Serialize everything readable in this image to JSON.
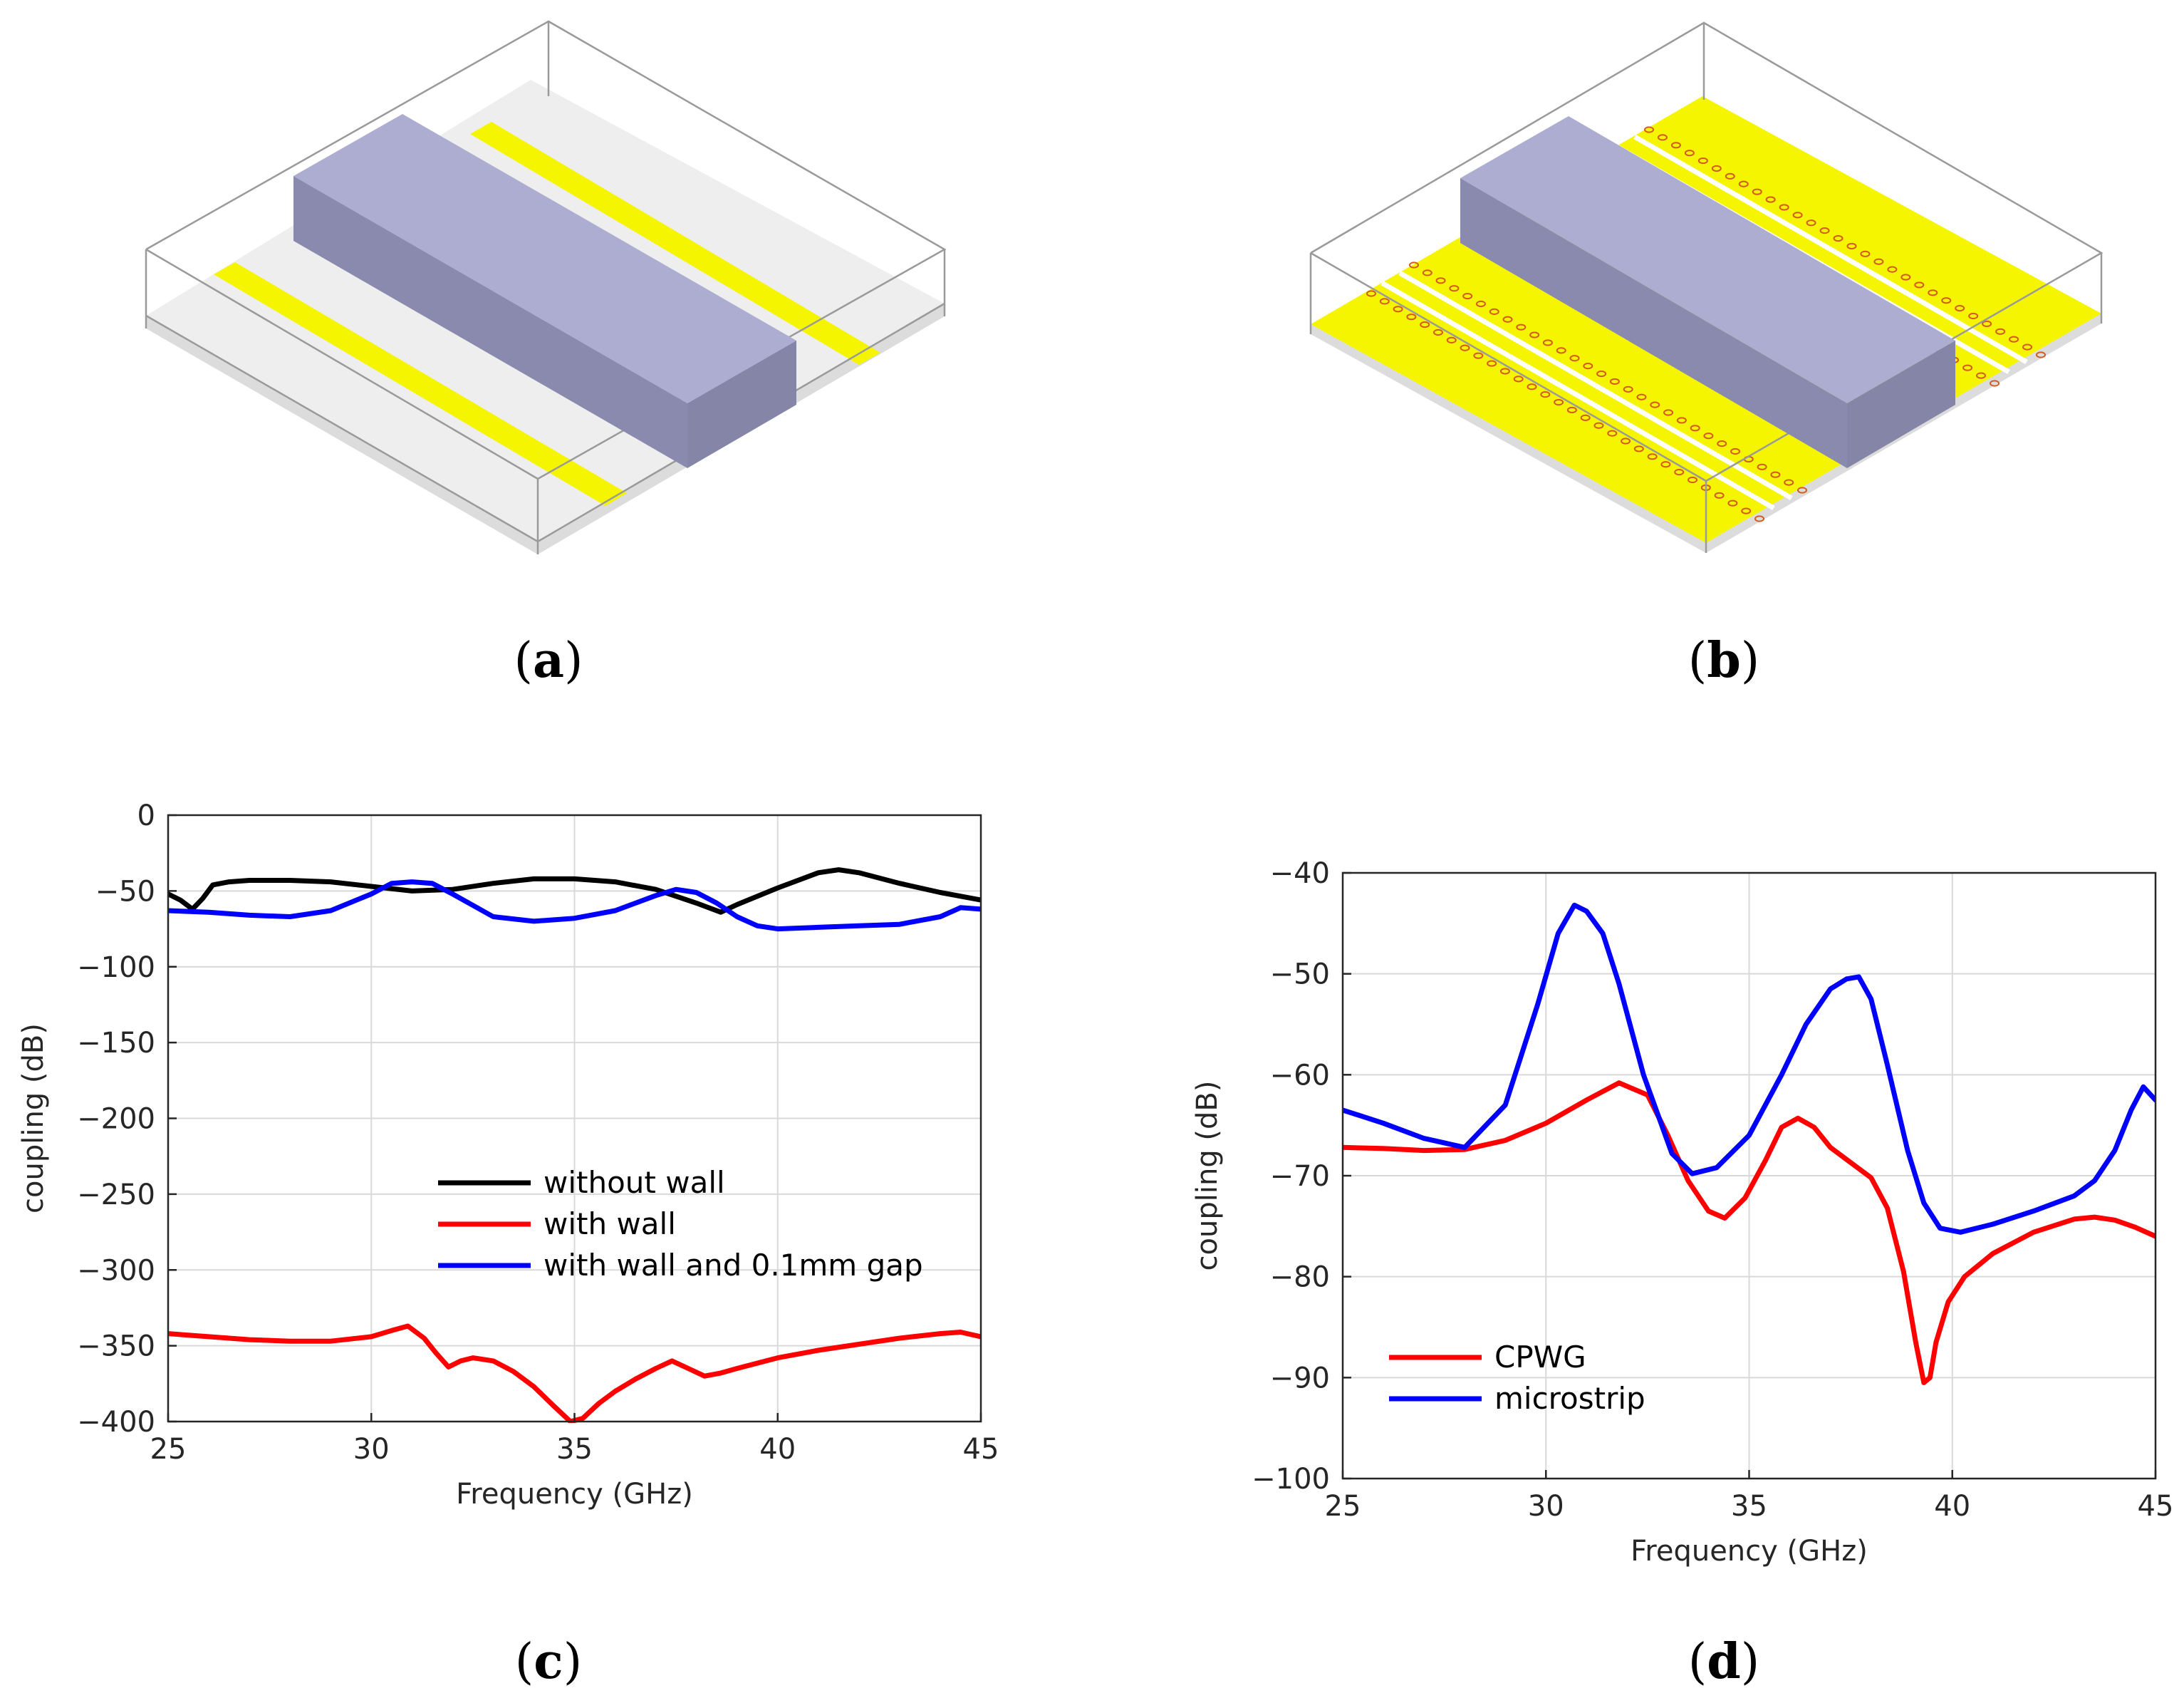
{
  "panels": {
    "a": {
      "caption": "a"
    },
    "b": {
      "caption": "b"
    },
    "c": {
      "caption": "c"
    },
    "d": {
      "caption": "d"
    }
  },
  "colors": {
    "box_face_top": "#adadd2",
    "box_face_front": "#8a8aae",
    "box_face_side": "#8585a8",
    "strip": "#f5f500",
    "ground": "#f5f500",
    "substrate": "#eeeeee",
    "via": "#d45a1e"
  },
  "chart_data": [
    {
      "id": "c",
      "type": "line",
      "title": "",
      "xlabel": "Frequency (GHz)",
      "ylabel": "coupling (dB)",
      "xlim": [
        25,
        45
      ],
      "ylim": [
        -400,
        0
      ],
      "xticks": [
        25,
        30,
        35,
        40,
        45
      ],
      "yticks": [
        0,
        -50,
        -100,
        -150,
        -200,
        -250,
        -300,
        -350,
        -400
      ],
      "xtick_labels": [
        "25",
        "30",
        "35",
        "40",
        "45"
      ],
      "ytick_labels": [
        "0",
        "−50",
        "−100",
        "−150",
        "−200",
        "−250",
        "−300",
        "−350",
        "−400"
      ],
      "grid": true,
      "legend_position": "center-right",
      "series": [
        {
          "name": "without wall",
          "color": "#000000",
          "x": [
            25,
            25.3,
            25.6,
            25.85,
            26.1,
            26.5,
            27,
            28,
            29,
            30,
            31,
            32,
            33,
            34,
            35,
            36,
            37,
            38,
            38.6,
            39,
            40,
            41,
            41.5,
            42,
            43,
            44,
            45
          ],
          "y": [
            -52,
            -56,
            -62,
            -55,
            -46,
            -44,
            -43,
            -43,
            -44,
            -47,
            -50,
            -49,
            -45,
            -42,
            -42,
            -44,
            -49,
            -58,
            -64,
            -59,
            -48,
            -38,
            -36,
            -38,
            -45,
            -51,
            -56
          ]
        },
        {
          "name": "with wall",
          "color": "#ff0000",
          "x": [
            25,
            26,
            27,
            28,
            29,
            30,
            30.5,
            30.9,
            31.3,
            31.6,
            31.9,
            32.2,
            32.5,
            33,
            33.5,
            34,
            34.5,
            34.9,
            35.2,
            35.6,
            36,
            36.5,
            37,
            37.4,
            37.8,
            38.2,
            38.6,
            39,
            40,
            41,
            42,
            43,
            44,
            44.5,
            45
          ],
          "y": [
            -342,
            -344,
            -346,
            -347,
            -347,
            -344,
            -340,
            -337,
            -345,
            -355,
            -364,
            -360,
            -358,
            -360,
            -367,
            -377,
            -390,
            -400,
            -398,
            -388,
            -380,
            -372,
            -365,
            -360,
            -365,
            -370,
            -368,
            -365,
            -358,
            -353,
            -349,
            -345,
            -342,
            -341,
            -344
          ]
        },
        {
          "name": "with wall and 0.1mm gap",
          "color": "#0000ff",
          "x": [
            25,
            26,
            27,
            28,
            29,
            30,
            30.5,
            31,
            31.5,
            32,
            33,
            34,
            35,
            36,
            37,
            37.5,
            38,
            38.5,
            39,
            39.5,
            40,
            41,
            42,
            43,
            44,
            44.5,
            45
          ],
          "y": [
            -63,
            -64,
            -66,
            -67,
            -63,
            -52,
            -45,
            -44,
            -45,
            -52,
            -67,
            -70,
            -68,
            -63,
            -53,
            -49,
            -51,
            -58,
            -67,
            -73,
            -75,
            -74,
            -73,
            -72,
            -67,
            -61,
            -62
          ]
        }
      ]
    },
    {
      "id": "d",
      "type": "line",
      "title": "",
      "xlabel": "Frequency (GHz)",
      "ylabel": "coupling (dB)",
      "xlim": [
        25,
        45
      ],
      "ylim": [
        -100,
        -40
      ],
      "xticks": [
        25,
        30,
        35,
        40,
        45
      ],
      "yticks": [
        -40,
        -50,
        -60,
        -70,
        -80,
        -90,
        -100
      ],
      "xtick_labels": [
        "25",
        "30",
        "35",
        "40",
        "45"
      ],
      "ytick_labels": [
        "−40",
        "−50",
        "−60",
        "−70",
        "−80",
        "−90",
        "−100"
      ],
      "grid": true,
      "legend_position": "bottom-left",
      "series": [
        {
          "name": "CPWG",
          "color": "#ff0000",
          "x": [
            25,
            26,
            27,
            28,
            29,
            30,
            31,
            31.8,
            32.5,
            33,
            33.5,
            34,
            34.4,
            34.9,
            35.4,
            35.8,
            36.2,
            36.6,
            37,
            37.5,
            38,
            38.4,
            38.8,
            39.1,
            39.3,
            39.45,
            39.6,
            39.9,
            40.3,
            41,
            42,
            43,
            43.5,
            44,
            44.5,
            45
          ],
          "y": [
            -67.2,
            -67.3,
            -67.5,
            -67.4,
            -66.5,
            -64.8,
            -62.5,
            -60.8,
            -62,
            -66,
            -70.5,
            -73.5,
            -74.2,
            -72.2,
            -68.5,
            -65.2,
            -64.3,
            -65.2,
            -67.2,
            -68.7,
            -70.2,
            -73.2,
            -79.5,
            -86.5,
            -90.5,
            -90,
            -86.5,
            -82.5,
            -80,
            -77.7,
            -75.6,
            -74.3,
            -74.1,
            -74.4,
            -75.1,
            -76
          ]
        },
        {
          "name": "microstrip",
          "color": "#0000ff",
          "x": [
            25,
            26,
            27,
            28,
            29,
            29.8,
            30.3,
            30.7,
            31,
            31.4,
            31.8,
            32.4,
            33.1,
            33.6,
            34.2,
            35,
            35.8,
            36.4,
            37,
            37.4,
            37.7,
            38,
            38.4,
            38.9,
            39.3,
            39.7,
            40.2,
            41,
            42,
            43,
            43.5,
            44,
            44.4,
            44.7,
            45
          ],
          "y": [
            -63.5,
            -64.8,
            -66.3,
            -67.2,
            -63,
            -53,
            -46,
            -43.2,
            -43.8,
            -46,
            -51,
            -60,
            -67.8,
            -69.8,
            -69.2,
            -66,
            -60,
            -55,
            -51.5,
            -50.5,
            -50.3,
            -52.5,
            -59,
            -67.5,
            -72.7,
            -75.2,
            -75.6,
            -74.8,
            -73.5,
            -72,
            -70.5,
            -67.5,
            -63.5,
            -61.2,
            -62.5
          ]
        }
      ]
    }
  ]
}
